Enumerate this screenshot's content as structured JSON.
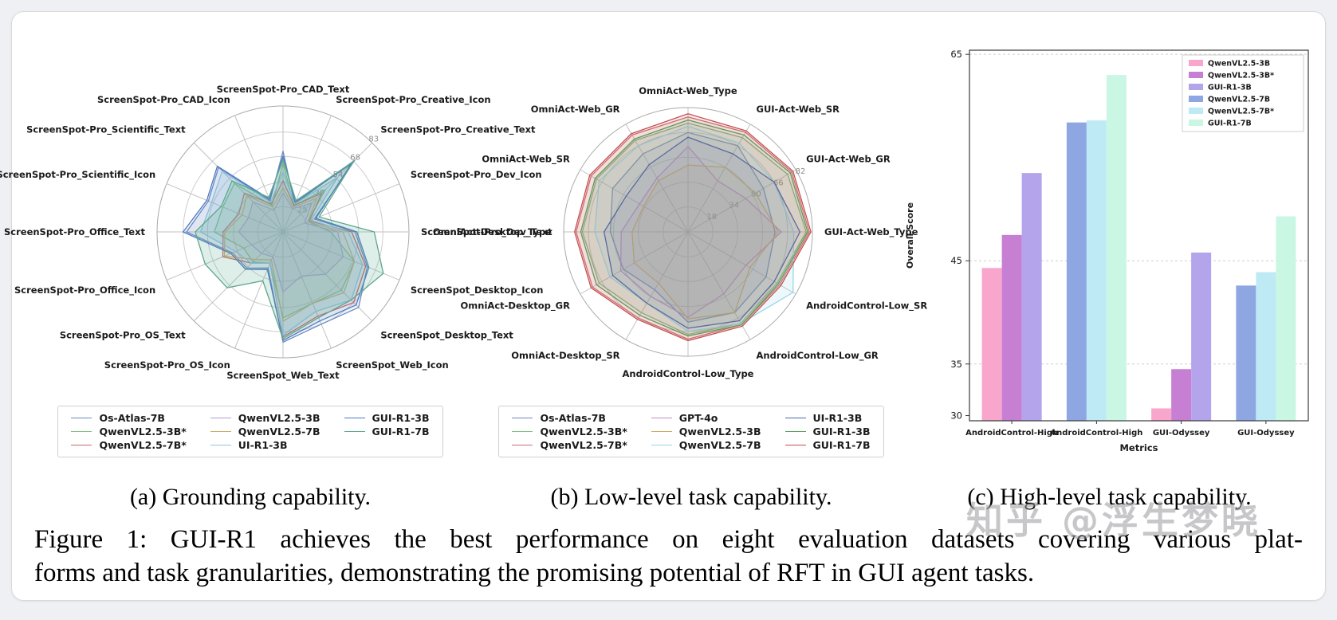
{
  "page": {
    "watermark": "知乎 @浮生梦晓"
  },
  "subcaptions": {
    "a": "(a) Grounding capability.",
    "b": "(b) Low-level task capability.",
    "c": "(c) High-level task capability."
  },
  "caption": {
    "line1": "Figure 1: GUI-R1 achieves the best performance on eight evaluation datasets covering various plat-",
    "line2": "forms and task granularities, demonstrating the promising potential of RFT in GUI agent tasks."
  },
  "chart_data": [
    {
      "type": "radar",
      "name": "grounding-capability",
      "axes": [
        "ScreenSpot-Pro_CAD_Text",
        "ScreenSpot-Pro_Creative_Icon",
        "ScreenSpot-Pro_Creative_Text",
        "ScreenSpot-Pro_Dev_Icon",
        "ScreenSpot-Pro_Dev_Text",
        "ScreenSpot_Desktop_Icon",
        "ScreenSpot_Desktop_Text",
        "ScreenSpot_Web_Icon",
        "ScreenSpot_Web_Text",
        "ScreenSpot-Pro_OS_Icon",
        "ScreenSpot-Pro_OS_Text",
        "ScreenSpot-Pro_Office_Icon",
        "ScreenSpot-Pro_Office_Text",
        "ScreenSpot-Pro_Scientific_Icon",
        "ScreenSpot-Pro_Scientific_Text",
        "ScreenSpot-Pro_CAD_Icon"
      ],
      "radial_ticks": [
        25,
        39,
        54,
        68,
        83
      ],
      "r_min": 10.5,
      "r_max": 83,
      "tick_angle_deg": 45,
      "legend_position": "below",
      "series": [
        {
          "name": "Os-Atlas-7B",
          "color": "#6b8cbe",
          "fill_opacity": 0.1,
          "values": [
            57,
            28,
            69,
            30,
            52,
            63,
            72,
            68,
            74,
            33,
            40,
            42,
            66,
            57,
            63,
            30
          ]
        },
        {
          "name": "QwenVL2.5-3B*",
          "color": "#7fbf7f",
          "fill_opacity": 0.14,
          "values": [
            50,
            27,
            45,
            26,
            38,
            55,
            58,
            55,
            60,
            30,
            35,
            35,
            50,
            48,
            50,
            27
          ]
        },
        {
          "name": "QwenVL2.5-7B*",
          "color": "#c96a66",
          "fill_opacity": 0.08,
          "values": [
            40,
            27,
            42,
            27,
            50,
            62,
            68,
            63,
            71,
            30,
            36,
            48,
            45,
            38,
            42,
            28
          ]
        },
        {
          "name": "QwenVL2.5-3B",
          "color": "#b39bd2",
          "fill_opacity": 0.12,
          "values": [
            33,
            25,
            34,
            24,
            42,
            48,
            45,
            38,
            45,
            26,
            28,
            30,
            36,
            32,
            35,
            24
          ]
        },
        {
          "name": "QwenVL2.5-7B",
          "color": "#cfa968",
          "fill_opacity": 0.08,
          "values": [
            36,
            26,
            38,
            26,
            45,
            55,
            60,
            55,
            62,
            28,
            33,
            47,
            44,
            36,
            40,
            26
          ]
        },
        {
          "name": "UI-R1-3B",
          "color": "#8fc8de",
          "fill_opacity": 0.22,
          "values": [
            45,
            28,
            55,
            28,
            48,
            60,
            66,
            60,
            70,
            30,
            36,
            40,
            58,
            55,
            60,
            29
          ]
        },
        {
          "name": "GUI-R1-3B",
          "color": "#4e79c5",
          "fill_opacity": 0.1,
          "values": [
            54,
            29,
            66,
            31,
            53,
            64,
            70,
            66,
            73,
            34,
            41,
            43,
            68,
            58,
            64,
            31
          ]
        },
        {
          "name": "GUI-R1-7B",
          "color": "#5ca88a",
          "fill_opacity": 0.2,
          "values": [
            52,
            30,
            68,
            33,
            63,
            73,
            66,
            64,
            72,
            41,
            56,
            59,
            61,
            49,
            52,
            32
          ]
        }
      ]
    },
    {
      "type": "radar",
      "name": "low-level-task-capability",
      "axes": [
        "OmniAct-Web_Type",
        "GUI-Act-Web_SR",
        "GUI-Act-Web_GR",
        "GUI-Act-Web_Type",
        "AndroidControl-Low_SR",
        "AndroidControl-Low_GR",
        "AndroidControl-Low_Type",
        "OmniAct-Desktop_SR",
        "OmniAct-Desktop_GR",
        "OmniAct-Desktop_Type",
        "OmniAct-Web_SR",
        "OmniAct-Web_GR"
      ],
      "radial_ticks": [
        18,
        34,
        50,
        66,
        82
      ],
      "r_min": 2,
      "r_max": 82,
      "tick_angle_deg": 27,
      "legend_position": "below",
      "series": [
        {
          "name": "Os-Atlas-7B",
          "color": "#6b8cbe",
          "fill_opacity": 0.14,
          "values": [
            66,
            66,
            58,
            58,
            60,
            62,
            60,
            45,
            50,
            52,
            58,
            60
          ]
        },
        {
          "name": "QwenVL2.5-3B*",
          "color": "#7fbf7f",
          "fill_opacity": 0.12,
          "values": [
            72,
            72,
            76,
            78,
            68,
            70,
            68,
            62,
            68,
            70,
            70,
            70
          ]
        },
        {
          "name": "QwenVL2.5-7B*",
          "color": "#cd7070",
          "fill_opacity": 0.12,
          "values": [
            76,
            76,
            79,
            80,
            70,
            71,
            71,
            66,
            73,
            74,
            74,
            74
          ]
        },
        {
          "name": "GPT-4o",
          "color": "#c489c4",
          "fill_opacity": 0.1,
          "values": [
            57,
            40,
            45,
            62,
            45,
            48,
            57,
            50,
            52,
            45,
            38,
            42
          ]
        },
        {
          "name": "QwenVL2.5-3B",
          "color": "#ccaa66",
          "fill_opacity": 0.1,
          "values": [
            45,
            50,
            52,
            60,
            48,
            62,
            58,
            40,
            42,
            38,
            35,
            40
          ]
        },
        {
          "name": "QwenVL2.5-7B",
          "color": "#99d6e8",
          "fill_opacity": 0.18,
          "values": [
            70,
            68,
            66,
            70,
            80,
            70,
            66,
            55,
            60,
            62,
            68,
            66
          ]
        },
        {
          "name": "UI-R1-3B",
          "color": "#4a68b0",
          "fill_opacity": 0.1,
          "values": [
            63,
            60,
            66,
            74,
            66,
            68,
            64,
            55,
            58,
            56,
            48,
            52
          ]
        },
        {
          "name": "GUI-R1-3B",
          "color": "#55a060",
          "fill_opacity": 0.1,
          "values": [
            74,
            74,
            78,
            79,
            69,
            71,
            69,
            64,
            70,
            71,
            71,
            71
          ]
        },
        {
          "name": "GUI-R1-7B",
          "color": "#c4504e",
          "fill_opacity": 0.1,
          "values": [
            78,
            77,
            80,
            81,
            71,
            72,
            72,
            67,
            74,
            75,
            75,
            75
          ]
        }
      ]
    },
    {
      "type": "bar",
      "name": "high-level-task-capability",
      "xlabel": "Metrics",
      "ylabel": "Overall Score",
      "ylim": [
        29.5,
        65.4
      ],
      "yticks": [
        30,
        35,
        45,
        65
      ],
      "grid": "dashed-horizontal",
      "legend_position": "upper-right-inside",
      "categories": [
        "AndroidControl-High",
        "AndroidControl-High",
        "GUI-Odyssey",
        "GUI-Odyssey"
      ],
      "groups": [
        {
          "category": "AndroidControl-High",
          "bars": [
            {
              "series": "QwenVL2.5-3B",
              "value": 44.3
            },
            {
              "series": "QwenVL2.5-3B*",
              "value": 47.5
            },
            {
              "series": "GUI-R1-3B",
              "value": 53.5
            }
          ]
        },
        {
          "category": "AndroidControl-High",
          "bars": [
            {
              "series": "QwenVL2.5-7B",
              "value": 58.4
            },
            {
              "series": "QwenVL2.5-7B*",
              "value": 58.6
            },
            {
              "series": "GUI-R1-7B",
              "value": 63.0
            }
          ]
        },
        {
          "category": "GUI-Odyssey",
          "bars": [
            {
              "series": "QwenVL2.5-3B",
              "value": 30.7
            },
            {
              "series": "QwenVL2.5-3B*",
              "value": 34.5
            },
            {
              "series": "GUI-R1-3B",
              "value": 45.8
            }
          ]
        },
        {
          "category": "GUI-Odyssey",
          "bars": [
            {
              "series": "QwenVL2.5-7B",
              "value": 42.6
            },
            {
              "series": "QwenVL2.5-7B*",
              "value": 43.9
            },
            {
              "series": "GUI-R1-7B",
              "value": 49.3
            }
          ]
        }
      ],
      "legend": [
        {
          "label": "QwenVL2.5-3B",
          "color": "#f8a6cb"
        },
        {
          "label": "QwenVL2.5-3B*",
          "color": "#c77fd4"
        },
        {
          "label": "GUI-R1-3B",
          "color": "#b4a4ec"
        },
        {
          "label": "QwenVL2.5-7B",
          "color": "#8ea6e2"
        },
        {
          "label": "QwenVL2.5-7B*",
          "color": "#bdeaf4"
        },
        {
          "label": "GUI-R1-7B",
          "color": "#c9f7e4"
        }
      ]
    }
  ]
}
